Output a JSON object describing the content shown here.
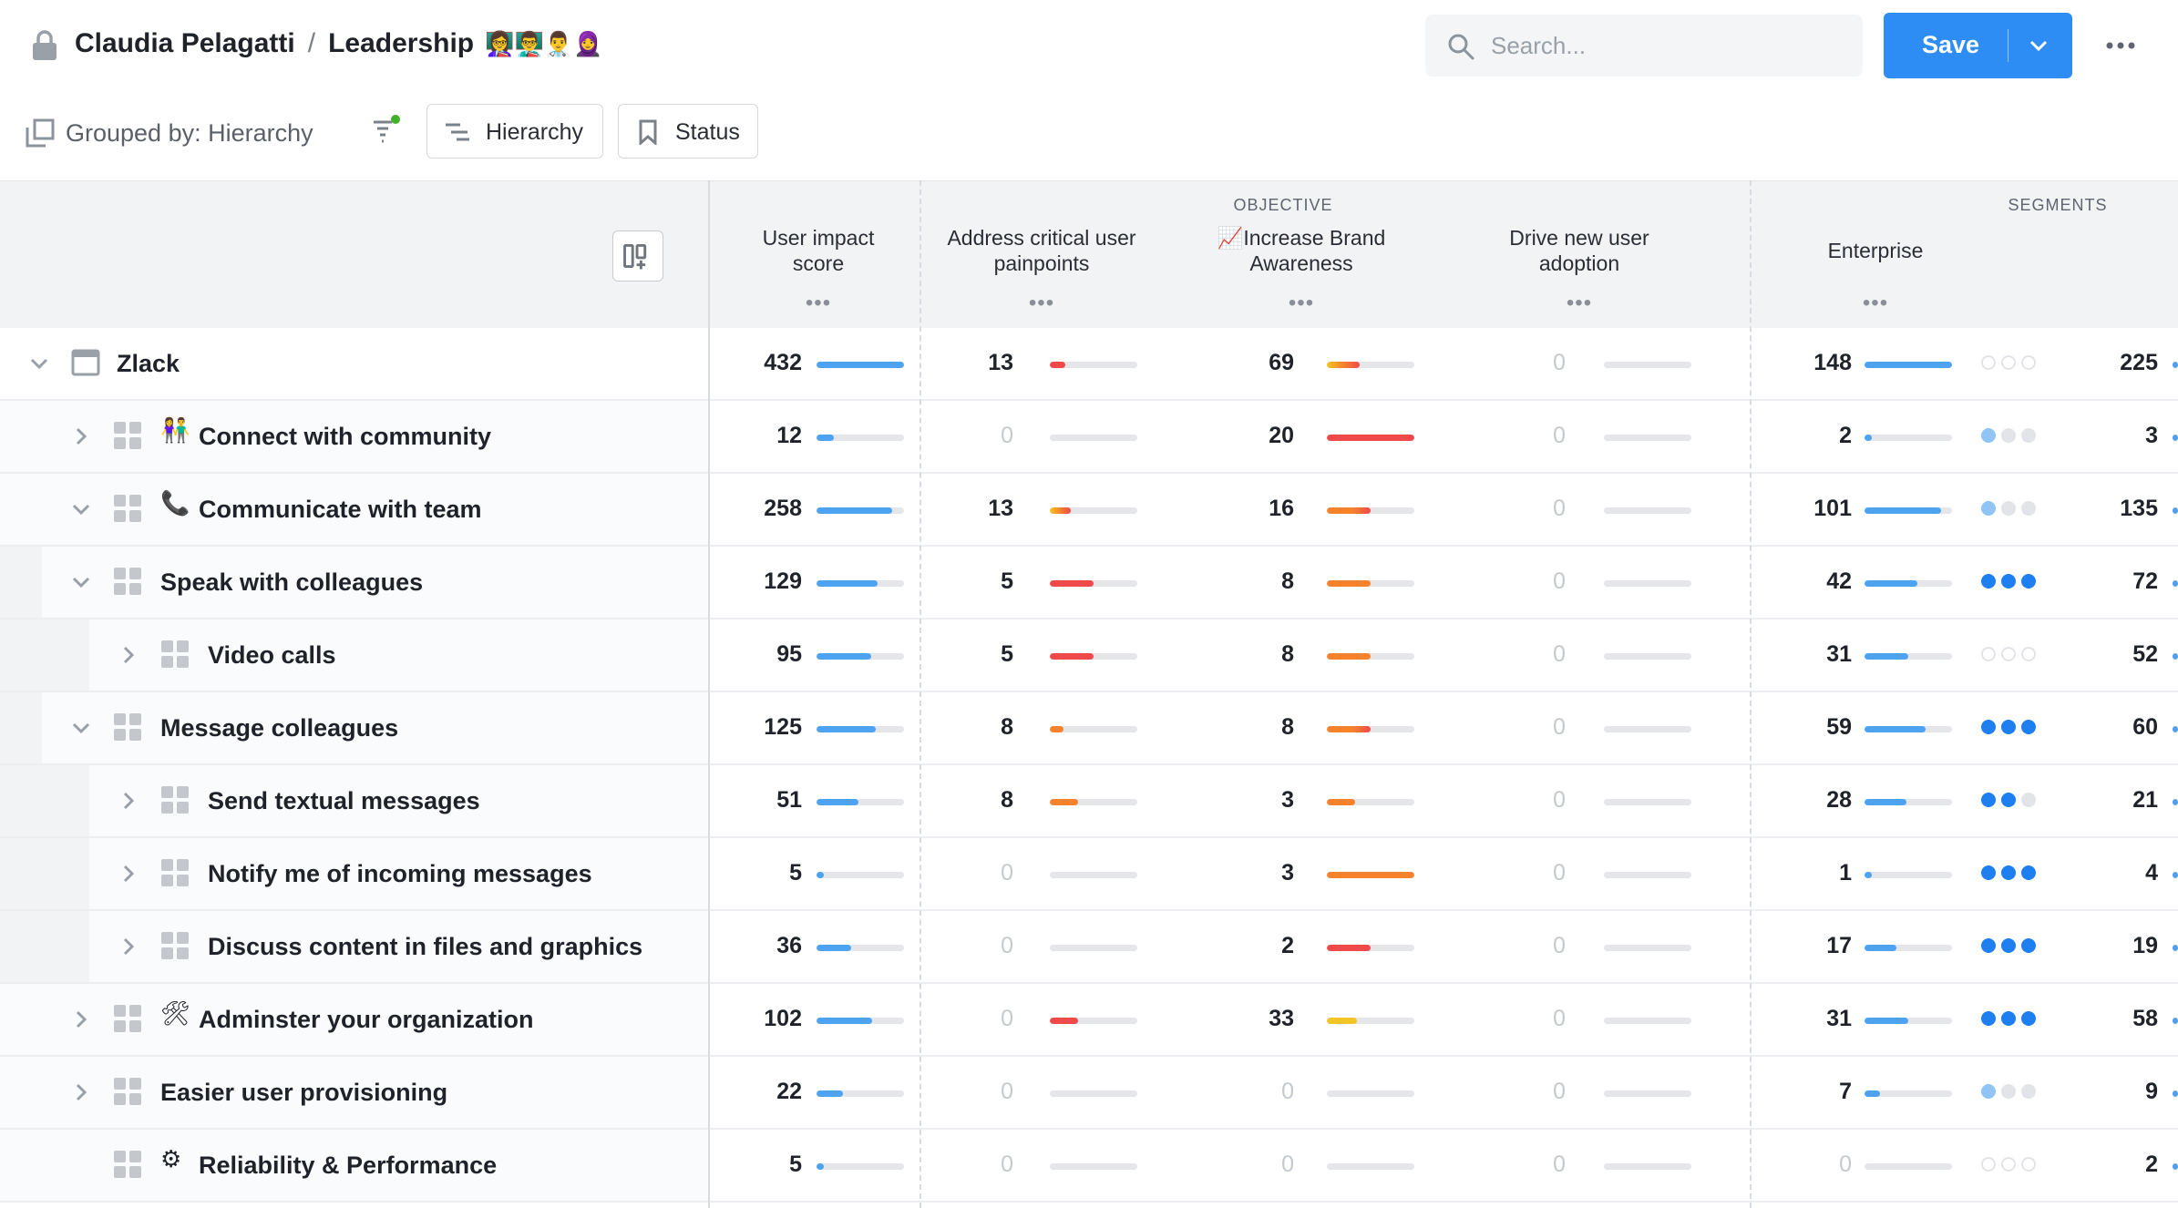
{
  "breadcrumb": {
    "owner": "Claudia Pelagatti",
    "separator": "/",
    "page": "Leadership",
    "emoji": "👩‍🏫👨‍🏫👨‍⚕️🧕"
  },
  "search": {
    "placeholder": "Search..."
  },
  "save": {
    "label": "Save"
  },
  "toolbar": {
    "grouped_label": "Grouped by: Hierarchy",
    "hierarchy_label": "Hierarchy",
    "status_label": "Status"
  },
  "headers": {
    "objective_group": "OBJECTIVE",
    "segments_group": "SEGMENTS",
    "col1_l1": "User impact",
    "col1_l2": "score",
    "col2_l1": "Address critical user",
    "col2_l2": "painpoints",
    "col3_l1": "📈Increase Brand",
    "col3_l2": "Awareness",
    "col4_l1": "Drive new user",
    "col4_l2": "adoption",
    "col5": "Enterprise",
    "menu": "•••"
  },
  "colors": {
    "blue": "#4ea3f1",
    "red": "#ef4a4a",
    "orange": "#f5832c",
    "yellow": "#f4c526",
    "track": "#e4e6e9",
    "dot_empty": "#e2e4e8",
    "dot_light": "#8fc4f5",
    "dot_blue": "#1e7ff0"
  },
  "rows": [
    {
      "title": "Zlack",
      "emoji": "",
      "indent": 0,
      "toggle": "down",
      "icon": "window",
      "shade": false,
      "impact": "432",
      "impact_pct": 1.0,
      "pain": "13",
      "pain_pct": 0.18,
      "pain_c": "red",
      "brand": "69",
      "brand_pct": 0.38,
      "brand_c": "mix",
      "adopt": "0",
      "ent": "148",
      "ent_pct": 1.0,
      "dots": 0,
      "last": "225"
    },
    {
      "title": "Connect with community",
      "emoji": "👫",
      "indent": 1,
      "toggle": "right",
      "icon": "grid",
      "shade": false,
      "impact": "12",
      "impact_pct": 0.2,
      "pain": "0",
      "pain_pct": 0,
      "pain_c": "red",
      "brand": "20",
      "brand_pct": 1.0,
      "brand_c": "red",
      "adopt": "0",
      "ent": "2",
      "ent_pct": 0.06,
      "dots": 1,
      "last": "3"
    },
    {
      "title": "Communicate with team",
      "emoji": "📞",
      "indent": 1,
      "toggle": "down",
      "icon": "grid",
      "shade": false,
      "impact": "258",
      "impact_pct": 0.86,
      "pain": "13",
      "pain_pct": 0.24,
      "pain_c": "mix",
      "brand": "16",
      "brand_pct": 0.5,
      "brand_c": "mix2",
      "adopt": "0",
      "ent": "101",
      "ent_pct": 0.88,
      "dots": 1,
      "last": "135"
    },
    {
      "title": "Speak with colleagues",
      "emoji": "",
      "indent": 2,
      "toggle": "down",
      "icon": "grid",
      "shade": true,
      "impact": "129",
      "impact_pct": 0.7,
      "pain": "5",
      "pain_pct": 0.5,
      "pain_c": "red",
      "brand": "8",
      "brand_pct": 0.5,
      "brand_c": "orange",
      "adopt": "0",
      "ent": "42",
      "ent_pct": 0.6,
      "dots": 3,
      "last": "72"
    },
    {
      "title": "Video calls",
      "emoji": "",
      "indent": 3,
      "toggle": "right",
      "icon": "grid",
      "shade": true,
      "impact": "95",
      "impact_pct": 0.62,
      "pain": "5",
      "pain_pct": 0.5,
      "pain_c": "red",
      "brand": "8",
      "brand_pct": 0.5,
      "brand_c": "orange",
      "adopt": "0",
      "ent": "31",
      "ent_pct": 0.5,
      "dots": 0,
      "last": "52"
    },
    {
      "title": "Message colleagues",
      "emoji": "",
      "indent": 2,
      "toggle": "down",
      "icon": "grid",
      "shade": true,
      "impact": "125",
      "impact_pct": 0.68,
      "pain": "8",
      "pain_pct": 0.16,
      "pain_c": "orange",
      "brand": "8",
      "brand_pct": 0.5,
      "brand_c": "mix2",
      "adopt": "0",
      "ent": "59",
      "ent_pct": 0.7,
      "dots": 3,
      "last": "60"
    },
    {
      "title": "Send textual messages",
      "emoji": "",
      "indent": 3,
      "toggle": "right",
      "icon": "grid",
      "shade": true,
      "impact": "51",
      "impact_pct": 0.48,
      "pain": "8",
      "pain_pct": 0.32,
      "pain_c": "orange",
      "brand": "3",
      "brand_pct": 0.32,
      "brand_c": "orange",
      "adopt": "0",
      "ent": "28",
      "ent_pct": 0.48,
      "dots": 2,
      "last": "21"
    },
    {
      "title": "Notify me of incoming messages",
      "emoji": "",
      "indent": 3,
      "toggle": "right",
      "icon": "grid",
      "shade": true,
      "impact": "5",
      "impact_pct": 0.08,
      "pain": "0",
      "pain_pct": 0,
      "pain_c": "red",
      "brand": "3",
      "brand_pct": 1.0,
      "brand_c": "orange",
      "adopt": "0",
      "ent": "1",
      "ent_pct": 0.03,
      "dots": 3,
      "last": "4"
    },
    {
      "title": "Discuss content in files and graphics",
      "emoji": "",
      "indent": 3,
      "toggle": "right",
      "icon": "grid",
      "shade": true,
      "impact": "36",
      "impact_pct": 0.4,
      "pain": "0",
      "pain_pct": 0,
      "pain_c": "red",
      "brand": "2",
      "brand_pct": 0.5,
      "brand_c": "red",
      "adopt": "0",
      "ent": "17",
      "ent_pct": 0.36,
      "dots": 3,
      "last": "19"
    },
    {
      "title": "Adminster your organization",
      "emoji": "🛠",
      "indent": 1,
      "toggle": "right",
      "icon": "grid",
      "shade": false,
      "impact": "102",
      "impact_pct": 0.64,
      "pain": "0",
      "pain_pct": 0.32,
      "pain_c": "red",
      "brand": "33",
      "brand_pct": 0.34,
      "brand_c": "yellow",
      "adopt": "0",
      "ent": "31",
      "ent_pct": 0.5,
      "dots": 3,
      "last": "58"
    },
    {
      "title": "Easier user provisioning",
      "emoji": "",
      "indent": 1,
      "toggle": "right",
      "icon": "grid",
      "shade": false,
      "impact": "22",
      "impact_pct": 0.3,
      "pain": "0",
      "pain_pct": 0,
      "pain_c": "red",
      "brand": "0",
      "brand_pct": 0,
      "brand_c": "red",
      "adopt": "0",
      "ent": "7",
      "ent_pct": 0.18,
      "dots": 1,
      "last": "9"
    },
    {
      "title": "Reliability & Performance",
      "emoji": "⚙",
      "indent": 1,
      "toggle": "none",
      "icon": "grid",
      "shade": false,
      "impact": "5",
      "impact_pct": 0.08,
      "pain": "0",
      "pain_pct": 0,
      "pain_c": "red",
      "brand": "0",
      "brand_pct": 0,
      "brand_c": "red",
      "adopt": "0",
      "ent": "0",
      "ent_pct": 0,
      "dots": 0,
      "last": "2"
    }
  ]
}
